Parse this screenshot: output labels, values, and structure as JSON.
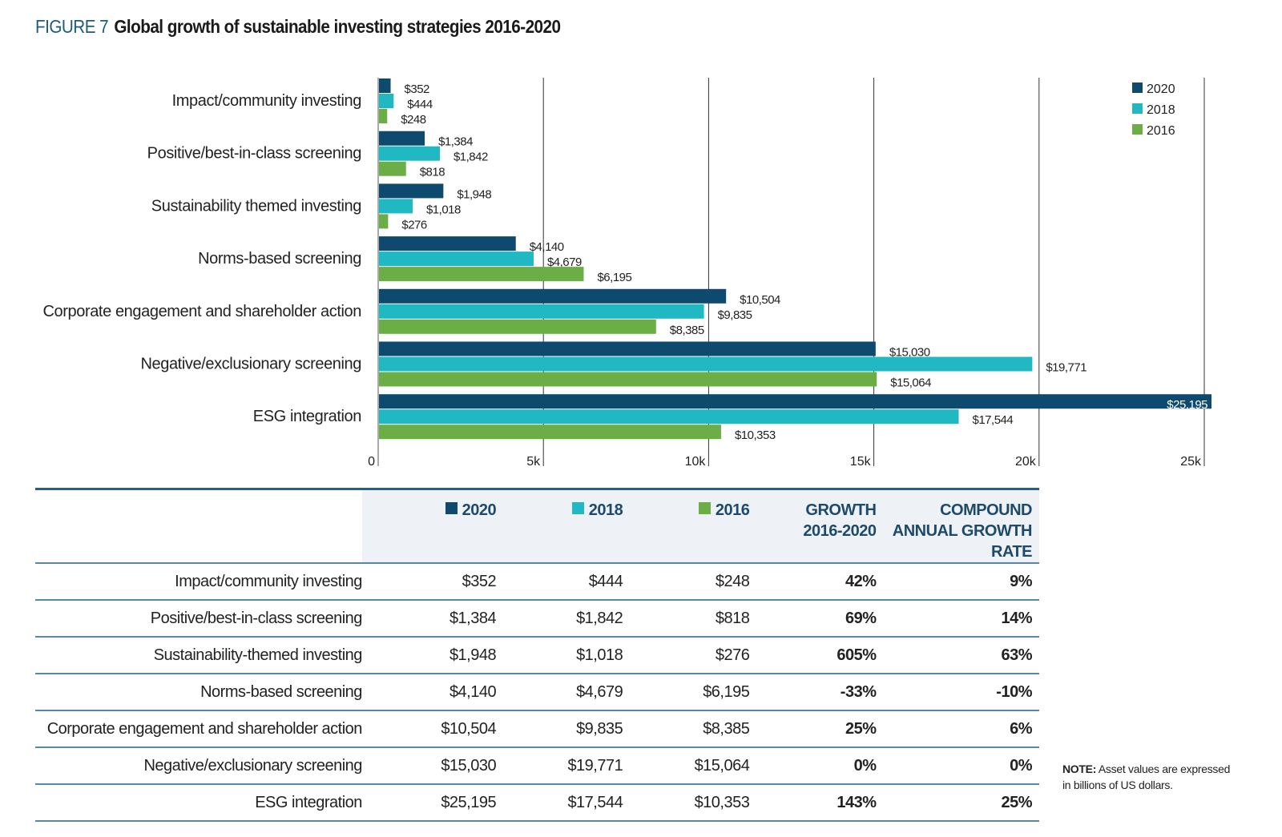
{
  "figure_label": "FIGURE 7",
  "title": "Global growth of sustainable investing strategies 2016-2020",
  "colors": {
    "2020": "#0e4a6e",
    "2018": "#1fb8c3",
    "2016": "#6aae45",
    "header_text": "#1d4a6b"
  },
  "chart_data": {
    "type": "bar",
    "orientation": "horizontal",
    "title": "Global growth of sustainable investing strategies 2016-2020",
    "categories": [
      "Impact/community investing",
      "Positive/best-in-class screening",
      "Sustainability themed investing",
      "Norms-based screening",
      "Corporate engagement and shareholder action",
      "Negative/exclusionary screening",
      "ESG integration"
    ],
    "series": [
      {
        "name": "2020",
        "color": "#0e4a6e",
        "values": [
          352,
          1384,
          1948,
          4140,
          10504,
          15030,
          25195
        ],
        "labels": [
          "$352",
          "$1,384",
          "$1,948",
          "$4,140",
          "$10,504",
          "$15,030",
          "$25,195"
        ]
      },
      {
        "name": "2018",
        "color": "#1fb8c3",
        "values": [
          444,
          1842,
          1018,
          4679,
          9835,
          19771,
          17544
        ],
        "labels": [
          "$444",
          "$1,842",
          "$1,018",
          "$4,679",
          "$9,835",
          "$19,771",
          "$17,544"
        ]
      },
      {
        "name": "2016",
        "color": "#6aae45",
        "values": [
          248,
          818,
          276,
          6195,
          8385,
          15064,
          10353
        ],
        "labels": [
          "$248",
          "$818",
          "$276",
          "$6,195",
          "$8,385",
          "$15,064",
          "$10,353"
        ]
      }
    ],
    "xlim": [
      0,
      25000
    ],
    "x_ticks": [
      0,
      5000,
      10000,
      15000,
      20000,
      25000
    ],
    "x_tick_labels": [
      "0",
      "5k",
      "10k",
      "15k",
      "20k",
      "25k"
    ],
    "grid": true,
    "legend": "top-right"
  },
  "table": {
    "headers": [
      "2020",
      "2018",
      "2016",
      "GROWTH 2016-2020",
      "COMPOUND ANNUAL GROWTH RATE"
    ],
    "rows": [
      {
        "label": "Impact/community investing",
        "v2020": "$352",
        "v2018": "$444",
        "v2016": "$248",
        "growth": "42%",
        "cagr": "9%"
      },
      {
        "label": "Positive/best-in-class screening",
        "v2020": "$1,384",
        "v2018": "$1,842",
        "v2016": "$818",
        "growth": "69%",
        "cagr": "14%"
      },
      {
        "label": "Sustainability-themed investing",
        "v2020": "$1,948",
        "v2018": "$1,018",
        "v2016": "$276",
        "growth": "605%",
        "cagr": "63%"
      },
      {
        "label": "Norms-based screening",
        "v2020": "$4,140",
        "v2018": "$4,679",
        "v2016": "$6,195",
        "growth": "-33%",
        "cagr": "-10%"
      },
      {
        "label": "Corporate engagement and shareholder action",
        "v2020": "$10,504",
        "v2018": "$9,835",
        "v2016": "$8,385",
        "growth": "25%",
        "cagr": "6%"
      },
      {
        "label": "Negative/exclusionary screening",
        "v2020": "$15,030",
        "v2018": "$19,771",
        "v2016": "$15,064",
        "growth": "0%",
        "cagr": "0%"
      },
      {
        "label": "ESG integration",
        "v2020": "$25,195",
        "v2018": "$17,544",
        "v2016": "$10,353",
        "growth": "143%",
        "cagr": "25%"
      }
    ]
  },
  "note": {
    "label": "NOTE:",
    "text": "Asset values are expressed in billions of US dollars."
  }
}
